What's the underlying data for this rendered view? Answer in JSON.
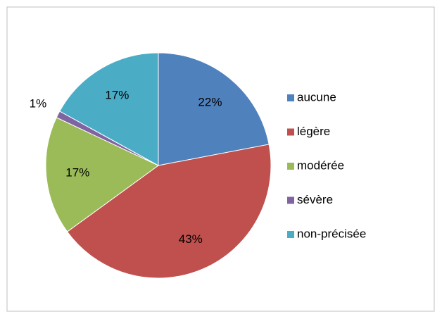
{
  "chart_data": {
    "type": "pie",
    "categories": [
      "aucune",
      "légère",
      "modérée",
      "sévère",
      "non-précisée"
    ],
    "values": [
      22,
      43,
      17,
      1,
      17
    ],
    "value_labels": [
      "22%",
      "43%",
      "17%",
      "1%",
      "17%"
    ],
    "colors": [
      "#4f81bd",
      "#c0504d",
      "#9bbb59",
      "#8064a2",
      "#4bacc6"
    ],
    "legend": "right"
  }
}
